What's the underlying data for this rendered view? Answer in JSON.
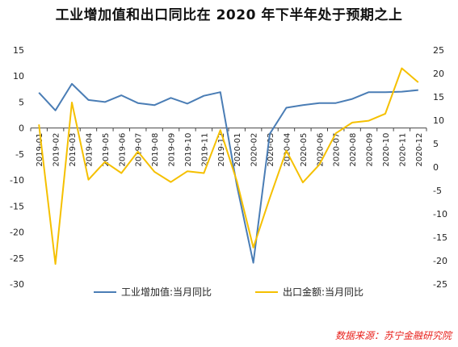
{
  "title": "工业增加值和出口同比在 2020 年下半年处于预期之上",
  "source": "数据来源：苏宁金融研究院",
  "chart_data": {
    "type": "line",
    "categories": [
      "2019-01",
      "2019-02",
      "2019-03",
      "2019-04",
      "2019-05",
      "2019-06",
      "2019-07",
      "2019-08",
      "2019-09",
      "2019-10",
      "2019-11",
      "2019-12",
      "2020-01",
      "2020-02",
      "2020-03",
      "2020-04",
      "2020-05",
      "2020-06",
      "2020-07",
      "2020-08",
      "2020-09",
      "2020-10",
      "2020-11",
      "2020-12"
    ],
    "y_left": {
      "min": -30,
      "max": 15,
      "ticks": [
        15,
        10,
        5,
        0,
        -5,
        -10,
        -15,
        -20,
        -25,
        -30
      ]
    },
    "y_right": {
      "min": -25,
      "max": 25,
      "ticks": [
        25,
        20,
        15,
        10,
        5,
        0,
        -5,
        -10,
        -15,
        -20,
        -25
      ]
    },
    "series": [
      {
        "name": "工业增加值:当月同比",
        "axis": "left",
        "color": "#4a7db5",
        "values": [
          6.8,
          3.4,
          8.5,
          5.4,
          5.0,
          6.3,
          4.8,
          4.4,
          5.8,
          4.7,
          6.2,
          6.9,
          -11.0,
          -25.9,
          -1.1,
          3.9,
          4.4,
          4.8,
          4.8,
          5.6,
          6.9,
          6.9,
          7.0,
          7.3
        ]
      },
      {
        "name": "出口金额:当月同比",
        "axis": "right",
        "color": "#f5c000",
        "values": [
          9.1,
          -20.7,
          13.8,
          -2.7,
          1.1,
          -1.3,
          3.3,
          -1.0,
          -3.2,
          -0.9,
          -1.3,
          7.9,
          -3.0,
          -17.2,
          -6.6,
          3.5,
          -3.3,
          0.5,
          7.2,
          9.5,
          9.9,
          11.4,
          21.1,
          18.1
        ]
      }
    ]
  }
}
